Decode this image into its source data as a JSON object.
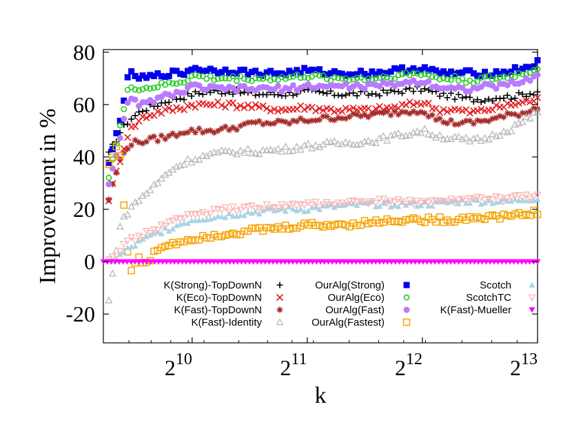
{
  "chart_data": {
    "type": "scatter",
    "xlabel": "k",
    "ylabel": "Improvement in %",
    "x_scale": "log2",
    "xlim": [
      600,
      8192
    ],
    "ylim": [
      -31,
      81
    ],
    "y_ticks": [
      "80",
      "60",
      "40",
      "20",
      "0",
      "-20"
    ],
    "x_ticks": [
      {
        "value": 1024,
        "base": "2",
        "exp": "10"
      },
      {
        "value": 2048,
        "base": "2",
        "exp": "11"
      },
      {
        "value": 4096,
        "base": "2",
        "exp": "12"
      },
      {
        "value": 8192,
        "base": "2",
        "exp": "13"
      }
    ],
    "legend_position": "bottom-inside",
    "series": [
      {
        "name": "K(Strong)-TopDownN",
        "marker": "plus",
        "color": "#000000",
        "points": [
          [
            620,
            41
          ],
          [
            660,
            49
          ],
          [
            700,
            54
          ],
          [
            760,
            58
          ],
          [
            830,
            60
          ],
          [
            900,
            62
          ],
          [
            980,
            63
          ],
          [
            1024,
            64
          ],
          [
            1150,
            65
          ],
          [
            1300,
            65
          ],
          [
            1500,
            64
          ],
          [
            1800,
            64
          ],
          [
            2000,
            65
          ],
          [
            2400,
            64
          ],
          [
            3000,
            64
          ],
          [
            3500,
            65
          ],
          [
            4096,
            66
          ],
          [
            4500,
            64
          ],
          [
            5000,
            63
          ],
          [
            5500,
            62
          ],
          [
            6000,
            62
          ],
          [
            6500,
            63
          ],
          [
            7000,
            63
          ],
          [
            7600,
            64
          ],
          [
            8192,
            65
          ]
        ]
      },
      {
        "name": "K(Eco)-TopDownN",
        "marker": "x",
        "color": "#e41a1c",
        "points": [
          [
            620,
            24
          ],
          [
            660,
            38
          ],
          [
            700,
            50
          ],
          [
            760,
            55
          ],
          [
            830,
            57
          ],
          [
            900,
            58
          ],
          [
            980,
            59
          ],
          [
            1024,
            60
          ],
          [
            1150,
            60
          ],
          [
            1300,
            60
          ],
          [
            1500,
            59
          ],
          [
            1800,
            58
          ],
          [
            2000,
            59
          ],
          [
            2400,
            58
          ],
          [
            3000,
            58
          ],
          [
            3500,
            59
          ],
          [
            4096,
            61
          ],
          [
            4500,
            58
          ],
          [
            5000,
            58
          ],
          [
            5500,
            57
          ],
          [
            6000,
            58
          ],
          [
            6500,
            59
          ],
          [
            7000,
            60
          ],
          [
            7600,
            61
          ],
          [
            8192,
            62
          ]
        ]
      },
      {
        "name": "K(Fast)-TopDownN",
        "marker": "star",
        "color": "#a52a2a",
        "points": [
          [
            620,
            24
          ],
          [
            660,
            38
          ],
          [
            700,
            45
          ],
          [
            760,
            46
          ],
          [
            830,
            47
          ],
          [
            900,
            48
          ],
          [
            980,
            50
          ],
          [
            1024,
            50
          ],
          [
            1150,
            50
          ],
          [
            1300,
            51
          ],
          [
            1500,
            53
          ],
          [
            1800,
            53
          ],
          [
            2000,
            54
          ],
          [
            2400,
            55
          ],
          [
            3000,
            56
          ],
          [
            3500,
            57
          ],
          [
            4096,
            58
          ],
          [
            4500,
            54
          ],
          [
            5000,
            53
          ],
          [
            5500,
            53
          ],
          [
            6000,
            54
          ],
          [
            6500,
            55
          ],
          [
            7000,
            56
          ],
          [
            7600,
            57
          ],
          [
            8192,
            59
          ]
        ]
      },
      {
        "name": "K(Fast)-Identity",
        "marker": "triangle",
        "color": "#b8b8b8",
        "points": [
          [
            620,
            -15
          ],
          [
            660,
            13
          ],
          [
            700,
            20
          ],
          [
            760,
            25
          ],
          [
            830,
            30
          ],
          [
            900,
            35
          ],
          [
            980,
            38
          ],
          [
            1024,
            39
          ],
          [
            1150,
            41
          ],
          [
            1300,
            42
          ],
          [
            1500,
            42
          ],
          [
            1800,
            43
          ],
          [
            2000,
            44
          ],
          [
            2400,
            45
          ],
          [
            3000,
            46
          ],
          [
            3500,
            48
          ],
          [
            4096,
            50
          ],
          [
            4500,
            48
          ],
          [
            5000,
            47
          ],
          [
            5500,
            46
          ],
          [
            6000,
            47
          ],
          [
            6500,
            49
          ],
          [
            7000,
            51
          ],
          [
            7600,
            54
          ],
          [
            8192,
            57
          ]
        ]
      },
      {
        "name": "OurAlg(Strong)",
        "marker": "square-filled",
        "color": "#0000ee",
        "points": [
          [
            620,
            37
          ],
          [
            660,
            53
          ],
          [
            700,
            72
          ],
          [
            760,
            70
          ],
          [
            830,
            71
          ],
          [
            900,
            72
          ],
          [
            980,
            72
          ],
          [
            1024,
            74
          ],
          [
            1150,
            73
          ],
          [
            1300,
            73
          ],
          [
            1500,
            72
          ],
          [
            1800,
            72
          ],
          [
            2000,
            73
          ],
          [
            2400,
            72
          ],
          [
            3000,
            72
          ],
          [
            3500,
            73
          ],
          [
            4096,
            74
          ],
          [
            4500,
            72
          ],
          [
            5000,
            72
          ],
          [
            5500,
            72
          ],
          [
            6000,
            72
          ],
          [
            6500,
            72
          ],
          [
            7000,
            73
          ],
          [
            7600,
            74
          ],
          [
            8192,
            76
          ]
        ]
      },
      {
        "name": "OurAlg(Eco)",
        "marker": "circle-open",
        "color": "#22cc22",
        "points": [
          [
            620,
            33
          ],
          [
            660,
            50
          ],
          [
            700,
            67
          ],
          [
            760,
            66
          ],
          [
            830,
            67
          ],
          [
            900,
            68
          ],
          [
            980,
            69
          ],
          [
            1024,
            71
          ],
          [
            1150,
            70
          ],
          [
            1300,
            70
          ],
          [
            1500,
            70
          ],
          [
            1800,
            70
          ],
          [
            2000,
            71
          ],
          [
            2400,
            70
          ],
          [
            3000,
            70
          ],
          [
            3500,
            71
          ],
          [
            4096,
            72
          ],
          [
            4500,
            70
          ],
          [
            5000,
            70
          ],
          [
            5500,
            69
          ],
          [
            6000,
            70
          ],
          [
            6500,
            70
          ],
          [
            7000,
            71
          ],
          [
            7600,
            72
          ],
          [
            8192,
            74
          ]
        ]
      },
      {
        "name": "OurAlg(Fast)",
        "marker": "circle-filled",
        "color": "#b97aff",
        "points": [
          [
            620,
            30
          ],
          [
            660,
            46
          ],
          [
            700,
            62
          ],
          [
            760,
            60
          ],
          [
            830,
            62
          ],
          [
            900,
            64
          ],
          [
            980,
            65
          ],
          [
            1024,
            67
          ],
          [
            1150,
            66
          ],
          [
            1300,
            66
          ],
          [
            1500,
            66
          ],
          [
            1800,
            66
          ],
          [
            2000,
            67
          ],
          [
            2400,
            67
          ],
          [
            3000,
            67
          ],
          [
            3500,
            68
          ],
          [
            4096,
            69
          ],
          [
            4500,
            67
          ],
          [
            5000,
            66
          ],
          [
            5500,
            66
          ],
          [
            6000,
            67
          ],
          [
            6500,
            67
          ],
          [
            7000,
            68
          ],
          [
            7600,
            69
          ],
          [
            8192,
            71
          ]
        ]
      },
      {
        "name": "OurAlg(Fastest)",
        "marker": "square-open",
        "color": "#f5a300",
        "points": [
          [
            620,
            37
          ],
          [
            660,
            46
          ],
          [
            700,
            -4
          ],
          [
            740,
            1
          ],
          [
            780,
            -1
          ],
          [
            830,
            5
          ],
          [
            900,
            7
          ],
          [
            980,
            8
          ],
          [
            1024,
            9
          ],
          [
            1150,
            10
          ],
          [
            1300,
            11
          ],
          [
            1500,
            12
          ],
          [
            1800,
            13
          ],
          [
            2000,
            14
          ],
          [
            2400,
            14
          ],
          [
            3000,
            15
          ],
          [
            3500,
            16
          ],
          [
            4096,
            16
          ],
          [
            4500,
            16
          ],
          [
            5000,
            16
          ],
          [
            5500,
            17
          ],
          [
            6000,
            17
          ],
          [
            6500,
            17
          ],
          [
            7000,
            18
          ],
          [
            7600,
            18
          ],
          [
            8192,
            19
          ]
        ]
      },
      {
        "name": "Scotch",
        "marker": "triangle-filled",
        "color": "#a8d4e6",
        "points": [
          [
            620,
            0
          ],
          [
            660,
            2
          ],
          [
            700,
            5
          ],
          [
            760,
            8
          ],
          [
            830,
            11
          ],
          [
            900,
            13
          ],
          [
            980,
            15
          ],
          [
            1024,
            16
          ],
          [
            1150,
            17
          ],
          [
            1300,
            18
          ],
          [
            1500,
            19
          ],
          [
            1800,
            20
          ],
          [
            2000,
            20
          ],
          [
            2400,
            21
          ],
          [
            3000,
            22
          ],
          [
            3500,
            22
          ],
          [
            4096,
            22
          ],
          [
            4500,
            22
          ],
          [
            5000,
            23
          ],
          [
            5500,
            23
          ],
          [
            6000,
            23
          ],
          [
            6500,
            23
          ],
          [
            7000,
            23
          ],
          [
            7600,
            24
          ],
          [
            8192,
            24
          ]
        ]
      },
      {
        "name": "ScotchTC",
        "marker": "triangle-down",
        "color": "#f8b4b4",
        "points": [
          [
            620,
            2
          ],
          [
            660,
            4
          ],
          [
            700,
            8
          ],
          [
            760,
            10
          ],
          [
            830,
            13
          ],
          [
            900,
            15
          ],
          [
            980,
            17
          ],
          [
            1024,
            18
          ],
          [
            1150,
            19
          ],
          [
            1300,
            20
          ],
          [
            1500,
            21
          ],
          [
            1800,
            21
          ],
          [
            2000,
            22
          ],
          [
            2400,
            22
          ],
          [
            3000,
            23
          ],
          [
            3500,
            23
          ],
          [
            4096,
            23
          ],
          [
            4500,
            23
          ],
          [
            5000,
            23
          ],
          [
            5500,
            24
          ],
          [
            6000,
            24
          ],
          [
            6500,
            24
          ],
          [
            7000,
            24
          ],
          [
            7600,
            25
          ],
          [
            8192,
            25
          ]
        ]
      },
      {
        "name": "K(Fast)-Mueller",
        "marker": "triangle-down-filled",
        "color": "#ff00ff",
        "points": [
          [
            600,
            0
          ],
          [
            8192,
            0
          ]
        ]
      }
    ]
  }
}
